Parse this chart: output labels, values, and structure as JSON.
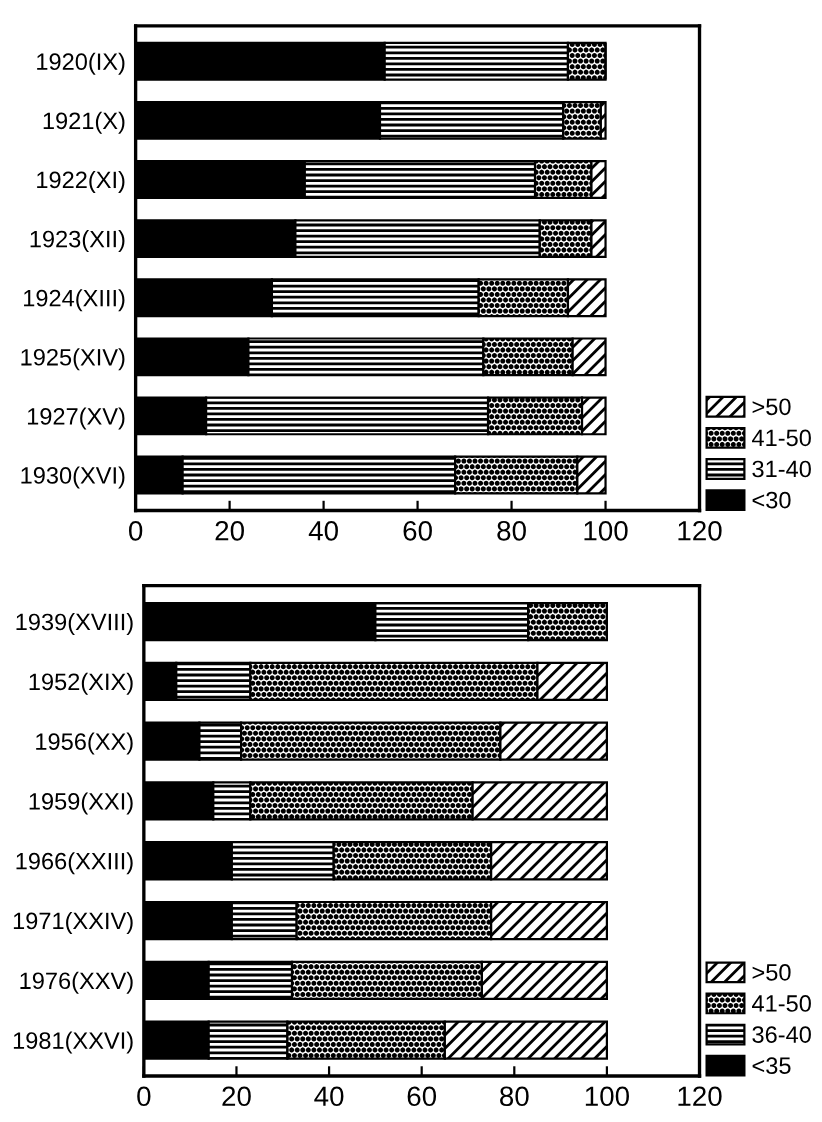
{
  "chart_data": [
    {
      "type": "bar",
      "orientation": "horizontal",
      "stacked": true,
      "categories": [
        "1920(IX)",
        "1921(X)",
        "1922(XI)",
        "1923(XII)",
        "1924(XIII)",
        "1925(XIV)",
        "1927(XV)",
        "1930(XVI)"
      ],
      "series": [
        {
          "name": "<30",
          "color": "#000000",
          "values": [
            53,
            52,
            36,
            34,
            29,
            24,
            15,
            10
          ]
        },
        {
          "name": "31-40",
          "color": "#000000",
          "values": [
            39,
            39,
            49,
            52,
            44,
            50,
            60,
            58
          ]
        },
        {
          "name": "41-50",
          "color": "#000000",
          "values": [
            8,
            8,
            12,
            11,
            19,
            19,
            20,
            26
          ]
        },
        {
          "name": ">50",
          "color": "#000000",
          "values": [
            0,
            1,
            3,
            3,
            8,
            7,
            5,
            6
          ]
        }
      ],
      "xlim": [
        0,
        120
      ],
      "xticks": [
        0,
        20,
        40,
        60,
        80,
        100,
        120
      ],
      "grid": false,
      "legend": "bottom right"
    },
    {
      "type": "bar",
      "orientation": "horizontal",
      "stacked": true,
      "categories": [
        "1939(XVIII)",
        "1952(XIX)",
        "1956(XX)",
        "1959(XXI)",
        "1966(XXIII)",
        "1971(XXIV)",
        "1976(XXV)",
        "1981(XXVI)"
      ],
      "series": [
        {
          "name": "<35",
          "color": "#000000",
          "values": [
            50,
            7,
            12,
            15,
            19,
            19,
            14,
            14
          ]
        },
        {
          "name": "36-40",
          "color": "#000000",
          "values": [
            33,
            16,
            9,
            8,
            22,
            14,
            18,
            17
          ]
        },
        {
          "name": "41-50",
          "color": "#000000",
          "values": [
            17,
            62,
            56,
            48,
            34,
            42,
            41,
            34
          ]
        },
        {
          "name": ">50",
          "color": "#000000",
          "values": [
            0,
            15,
            23,
            29,
            25,
            25,
            27,
            35
          ]
        }
      ],
      "xlim": [
        0,
        120
      ],
      "xticks": [
        0,
        20,
        40,
        60,
        80,
        100,
        120
      ],
      "grid": false,
      "legend": "bottom right"
    }
  ]
}
